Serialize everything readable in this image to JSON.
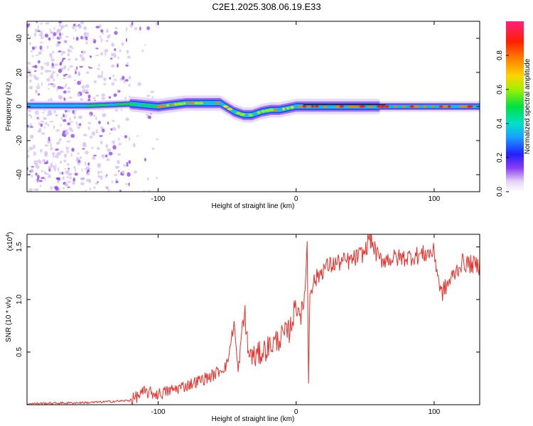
{
  "chart_data": [
    {
      "type": "heatmap",
      "title": "C2E1.2025.308.06.19.E33",
      "xlabel": "Height of straight line (km)",
      "ylabel": "Frequency (Hz)",
      "xlim": [
        -195,
        133
      ],
      "ylim": [
        -50,
        50
      ],
      "xticks": [
        "-100",
        "0",
        "100"
      ],
      "xtick_values": [
        -100,
        0,
        100
      ],
      "yticks": [
        "40",
        "20",
        "0",
        "-20",
        "-40"
      ],
      "ytick_values": [
        40,
        20,
        0,
        -20,
        -40
      ],
      "colorbar": {
        "label": "Normalized spectral amplitude",
        "range": [
          0.0,
          1.0
        ],
        "ticks": [
          "0.0",
          "0.2",
          "0.4",
          "0.6",
          "0.8"
        ],
        "tick_values": [
          0.0,
          0.2,
          0.4,
          0.6,
          0.8
        ]
      },
      "ridge": {
        "description": "dominant frequency vs height",
        "x": [
          -195,
          -150,
          -120,
          -100,
          -80,
          -65,
          -55,
          -45,
          -38,
          -32,
          -25,
          -18,
          -12,
          -6,
          0,
          5,
          20,
          50,
          80,
          110,
          133
        ],
        "y": [
          0.5,
          0.5,
          1.5,
          0,
          2,
          2,
          2,
          -3,
          -5,
          -5,
          -3,
          -2,
          -2,
          -1,
          0,
          0,
          0,
          0,
          0,
          0,
          0
        ]
      }
    },
    {
      "type": "line",
      "xlabel": "Height of straight line (km)",
      "ylabel": "SNR (10 * v/v)",
      "scale_label": "(x10",
      "scale_exp": "4",
      "scale_close": ")",
      "xlim": [
        -195,
        133
      ],
      "ylim": [
        0,
        1.62
      ],
      "xticks": [
        "-100",
        "0",
        "100"
      ],
      "xtick_values": [
        -100,
        0,
        100
      ],
      "yticks": [
        "0.5",
        "1.0",
        "1.5"
      ],
      "ytick_values": [
        0.5,
        1.0,
        1.5
      ],
      "series": [
        {
          "name": "SNR",
          "color": "#e8302a",
          "x": [
            -195,
            -150,
            -120,
            -110,
            -100,
            -80,
            -60,
            -50,
            -45,
            -42,
            -40,
            -37,
            -35,
            -30,
            -20,
            -10,
            -5,
            0,
            5,
            8,
            9,
            10,
            12,
            20,
            30,
            40,
            50,
            53,
            60,
            80,
            100,
            105,
            120,
            133
          ],
          "y": [
            0.01,
            0.02,
            0.04,
            0.12,
            0.1,
            0.18,
            0.28,
            0.38,
            0.78,
            0.3,
            0.6,
            0.88,
            0.5,
            0.45,
            0.55,
            0.65,
            0.7,
            0.95,
            0.85,
            1.5,
            0.25,
            1.1,
            1.15,
            1.3,
            1.35,
            1.37,
            1.45,
            1.6,
            1.38,
            1.4,
            1.45,
            1.05,
            1.35,
            1.32
          ]
        }
      ]
    }
  ]
}
